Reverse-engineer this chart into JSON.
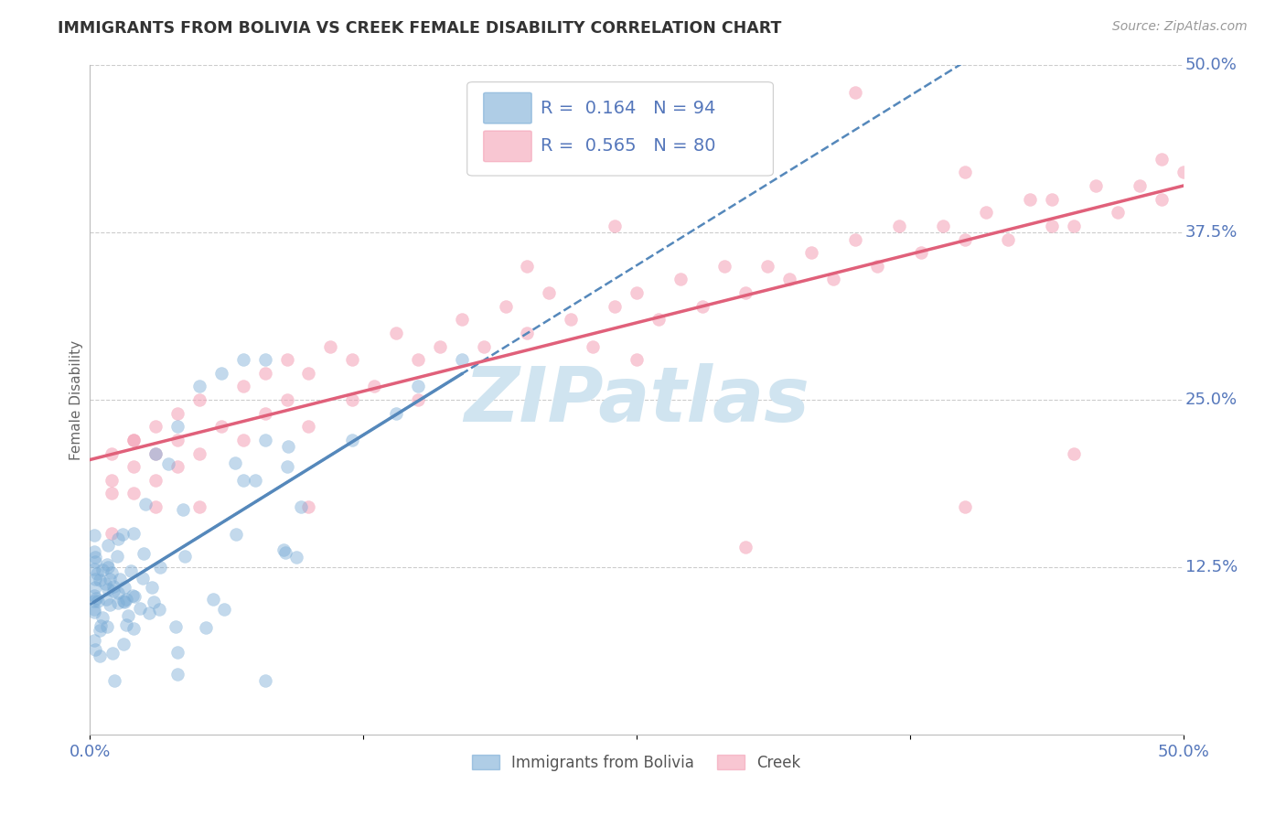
{
  "title": "IMMIGRANTS FROM BOLIVIA VS CREEK FEMALE DISABILITY CORRELATION CHART",
  "source": "Source: ZipAtlas.com",
  "ylabel": "Female Disability",
  "xlim": [
    0.0,
    0.5
  ],
  "ylim": [
    0.0,
    0.5
  ],
  "xtick_vals": [
    0.0,
    0.125,
    0.25,
    0.375,
    0.5
  ],
  "xticklabels": [
    "0.0%",
    "",
    "",
    "",
    "50.0%"
  ],
  "ytick_vals_right": [
    0.125,
    0.25,
    0.375,
    0.5
  ],
  "ytick_labels_right": [
    "12.5%",
    "25.0%",
    "37.5%",
    "50.0%"
  ],
  "bolivia_color": "#7aacd6",
  "bolivia_line_color": "#5588bb",
  "creek_color": "#f4a0b5",
  "creek_line_color": "#e0607a",
  "bolivia_R": 0.164,
  "bolivia_N": 94,
  "creek_R": 0.565,
  "creek_N": 80,
  "watermark": "ZIPatlas",
  "watermark_color": "#d0e4f0",
  "background_color": "#ffffff",
  "grid_color": "#cccccc",
  "legend_label_bolivia": "Immigrants from Bolivia",
  "legend_label_creek": "Creek",
  "title_color": "#333333",
  "axis_label_color": "#5577bb",
  "tick_color": "#5577bb",
  "ylabel_color": "#666666",
  "source_color": "#999999"
}
